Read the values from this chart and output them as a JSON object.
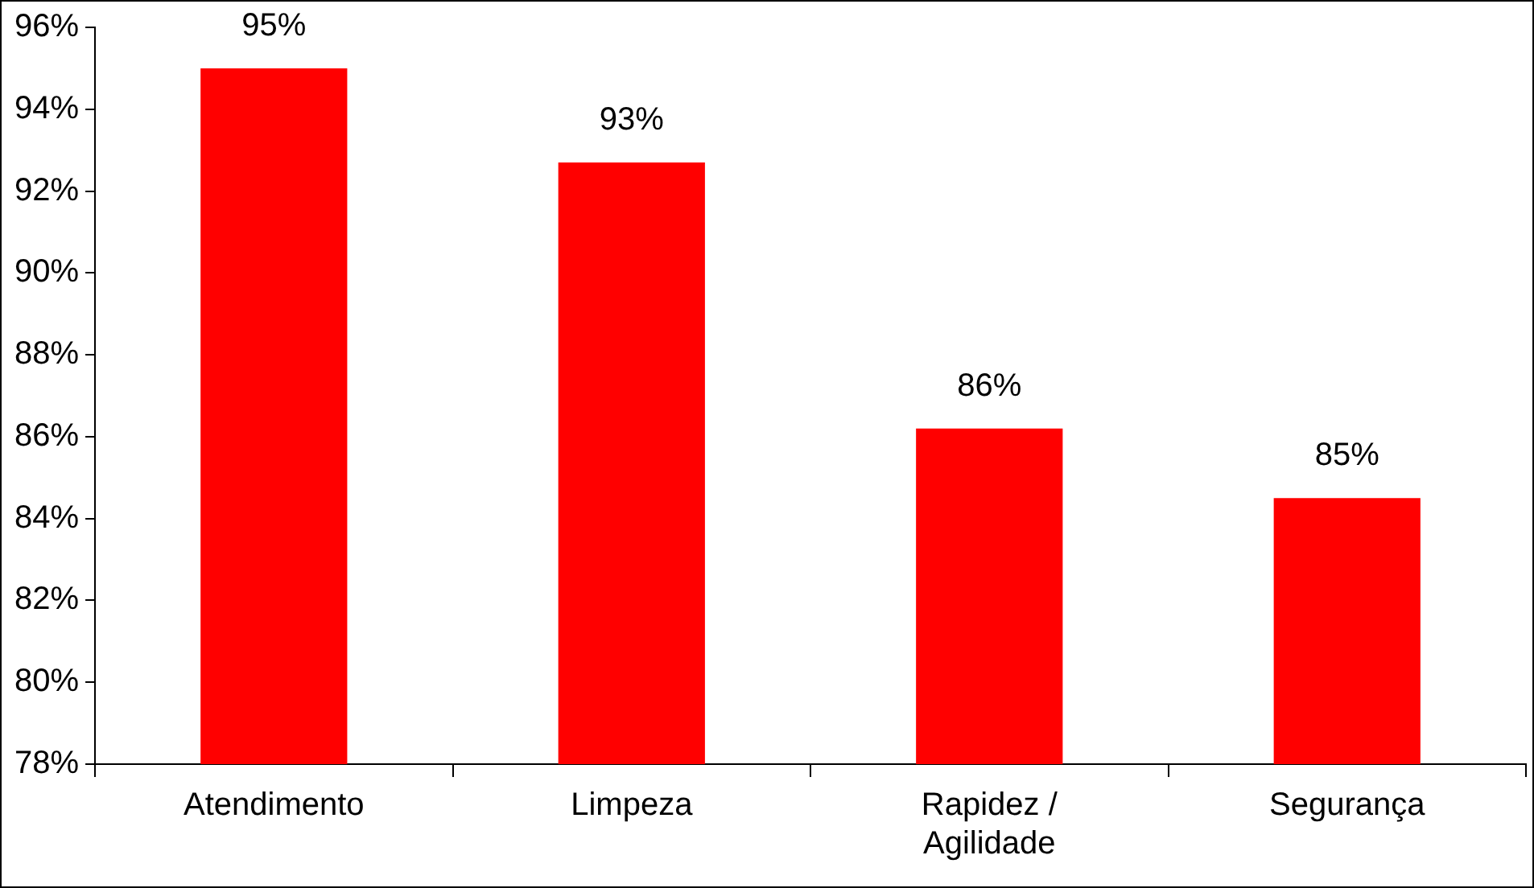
{
  "chart_data": {
    "type": "bar",
    "categories": [
      "Atendimento",
      "Limpeza",
      "Rapidez / Agilidade",
      "Segurança"
    ],
    "values": [
      95,
      92.7,
      86.2,
      84.5
    ],
    "value_labels": [
      "95%",
      "93%",
      "86%",
      "85%"
    ],
    "color": "#ff0000",
    "ylim": [
      78,
      96
    ],
    "yticks": [
      {
        "value": 78,
        "label": "78%"
      },
      {
        "value": 80,
        "label": "80%"
      },
      {
        "value": 82,
        "label": "82%"
      },
      {
        "value": 84,
        "label": "84%"
      },
      {
        "value": 86,
        "label": "86%"
      },
      {
        "value": 88,
        "label": "88%"
      },
      {
        "value": 90,
        "label": "90%"
      },
      {
        "value": 92,
        "label": "92%"
      },
      {
        "value": 94,
        "label": "94%"
      },
      {
        "value": 96,
        "label": "96%"
      }
    ],
    "grid": false,
    "legend": false
  }
}
